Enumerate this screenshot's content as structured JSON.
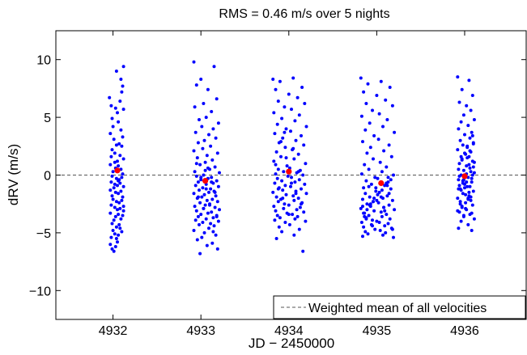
{
  "chart_data": {
    "type": "scatter",
    "title": "RMS = 0.46 m/s over 5 nights",
    "xlabel": "JD − 2450000",
    "ylabel": "dRV (m/s)",
    "xlim": [
      4931.35,
      4936.7
    ],
    "ylim": [
      -12.5,
      12.5
    ],
    "xticks": [
      4932,
      4933,
      4934,
      4935,
      4936
    ],
    "yticks": [
      -10,
      -5,
      0,
      5,
      10
    ],
    "ytick_labels": [
      "−10",
      "−5",
      "0",
      "5",
      "10"
    ],
    "grid": false,
    "legend": {
      "position": "bottom-right",
      "entries": [
        "Weighted mean of all velocities"
      ]
    },
    "mean_line": {
      "y": 0,
      "style": "dashed",
      "color": "#555555"
    },
    "nightly_means": {
      "color": "#ff0000",
      "x": [
        4932.05,
        4933.05,
        4934.0,
        4935.05,
        4936.0
      ],
      "y": [
        0.4,
        -0.5,
        0.3,
        -0.7,
        -0.1
      ]
    },
    "points_color": "#0000ff",
    "nights": [
      {
        "x": [
          4932.12,
          4931.96,
          4932.04,
          4932.09,
          4932.11,
          4931.98,
          4932.03,
          4932.1,
          4932.05,
          4931.99,
          4932.08,
          4932.0,
          4932.12,
          4931.97,
          4932.06,
          4932.09,
          4932.01,
          4932.04,
          4931.99,
          4932.11,
          4932.07,
          4931.98,
          4932.02,
          4932.1,
          4932.05,
          4932.08,
          4931.97,
          4932.03,
          4932.12,
          4932.0,
          4932.06,
          4931.99,
          4932.09,
          4932.04,
          4932.11,
          4931.98,
          4932.02,
          4932.07,
          4932.1,
          4932.01,
          4932.05,
          4931.97,
          4932.08,
          4932.03,
          4932.12,
          4931.99,
          4932.06,
          4932.0,
          4932.09,
          4932.04,
          4931.98,
          4932.11,
          4932.02,
          4932.07,
          4932.05,
          4932.1,
          4931.97,
          4932.03,
          4932.08,
          4932.01,
          4932.06,
          4931.99,
          4932.12,
          4932.04,
          4932.0,
          4932.09,
          4932.02,
          4931.98,
          4932.07,
          4932.11,
          4932.05,
          4932.03,
          4931.97,
          4932.1,
          4932.06,
          4932.01,
          4932.08,
          4932.04,
          4931.99,
          4932.12,
          4932.02,
          4932.06
        ],
        "y": [
          9.4,
          6.7,
          9.0,
          8.3,
          7.7,
          6.0,
          5.8,
          7.2,
          5.4,
          4.9,
          6.4,
          4.2,
          5.7,
          3.6,
          4.6,
          3.9,
          3.1,
          2.6,
          2.2,
          3.3,
          2.7,
          1.6,
          1.9,
          2.5,
          1.2,
          1.7,
          0.9,
          0.6,
          1.4,
          0.3,
          0.8,
          -0.1,
          0.5,
          -0.3,
          0.1,
          -0.6,
          -0.8,
          -0.4,
          -0.2,
          -1.1,
          -0.9,
          -1.3,
          -0.7,
          -1.5,
          -1.0,
          -1.8,
          -1.6,
          -2.1,
          -1.4,
          -2.3,
          -2.6,
          -1.9,
          -2.8,
          -2.4,
          -3.0,
          -2.2,
          -3.3,
          -3.6,
          -2.9,
          -3.9,
          -3.4,
          -4.2,
          -3.1,
          -4.5,
          -4.8,
          -3.8,
          -5.1,
          -5.4,
          -4.3,
          -3.5,
          -5.8,
          -6.2,
          -6.0,
          -4.9,
          -5.2,
          -6.6,
          -4.6,
          -5.5,
          -6.4,
          -2.7,
          1.1,
          -0.5
        ]
      },
      {
        "x": [
          4932.92,
          4933.15,
          4933.0,
          4932.95,
          4933.08,
          4933.18,
          4933.03,
          4932.93,
          4933.12,
          4933.06,
          4932.98,
          4933.2,
          4933.01,
          4933.14,
          4932.94,
          4933.09,
          4933.17,
          4933.04,
          4932.97,
          4933.11,
          4933.02,
          4932.92,
          4933.19,
          4933.07,
          4932.96,
          4933.13,
          4933.05,
          4932.99,
          4933.16,
          4933.1,
          4932.93,
          4933.21,
          4933.03,
          4932.95,
          4933.12,
          4933.08,
          4933.0,
          4933.18,
          4932.97,
          4933.14,
          4933.06,
          4932.94,
          4933.2,
          4933.02,
          4933.11,
          4932.98,
          4933.15,
          4933.09,
          4932.92,
          4933.04,
          4933.17,
          4933.01,
          4932.96,
          4933.13,
          4933.07,
          4933.19,
          4932.99,
          4933.1,
          4933.05,
          4932.93,
          4933.16,
          4933.03,
          4933.21,
          4932.95,
          4933.12,
          4933.08,
          4933.0,
          4933.18,
          4932.97,
          4933.14,
          4933.06,
          4932.94,
          4933.2,
          4933.02,
          4933.11,
          4932.98,
          4933.15,
          4933.09,
          4932.92,
          4933.04,
          4933.17,
          4933.01,
          4932.96,
          4933.13,
          4933.07,
          4933.19,
          4932.99,
          4933.1,
          4933.05,
          4933.16,
          4932.95,
          4933.12,
          4933.03,
          4933.08,
          4932.97,
          4933.18,
          4933.0,
          4933.14,
          4933.06
        ],
        "y": [
          9.8,
          9.4,
          8.3,
          7.8,
          7.4,
          6.6,
          6.2,
          5.9,
          5.5,
          5.0,
          4.8,
          4.5,
          4.2,
          4.0,
          3.7,
          3.5,
          3.2,
          3.0,
          2.8,
          2.5,
          2.3,
          2.1,
          1.9,
          1.7,
          1.5,
          1.3,
          1.1,
          0.9,
          0.7,
          0.5,
          0.3,
          0.2,
          0.0,
          -0.1,
          -0.2,
          -0.3,
          -0.4,
          -0.5,
          -0.6,
          -0.7,
          -0.8,
          -0.9,
          -1.0,
          -1.1,
          -1.2,
          -1.3,
          -1.4,
          -1.5,
          -1.6,
          -1.7,
          -1.8,
          -1.9,
          -2.0,
          -2.1,
          -2.2,
          -2.3,
          -2.4,
          -2.5,
          -2.6,
          -2.7,
          -2.8,
          -2.9,
          -3.0,
          -3.1,
          -3.2,
          -3.3,
          -3.4,
          -3.5,
          -3.6,
          -3.7,
          -3.8,
          -3.9,
          -4.0,
          -4.1,
          -4.2,
          -4.3,
          -4.4,
          -4.6,
          -4.8,
          -5.0,
          -5.2,
          -5.4,
          -5.6,
          -5.9,
          -6.1,
          -6.4,
          -6.8,
          -2.6,
          0.4,
          -1.5,
          1.0,
          -0.6,
          -2.9,
          0.6,
          -1.9,
          -3.6,
          -0.2,
          -4.9,
          -1.2
        ],
        "cluster": null
      },
      {
        "x": [
          4933.82,
          4934.05,
          4933.9,
          4934.15,
          4933.85,
          4934.0,
          4934.1,
          4933.88,
          4934.18,
          4933.95,
          4934.03,
          4933.83,
          4934.12,
          4933.92,
          4934.07,
          4933.87,
          4934.2,
          4933.97,
          4934.02,
          4933.84,
          4934.14,
          4933.93,
          4934.08,
          4933.89,
          4934.17,
          4933.96,
          4934.04,
          4933.86,
          4934.11,
          4933.91,
          4934.06,
          4933.83,
          4934.19,
          4933.98,
          4934.01,
          4933.88,
          4934.13,
          4933.94,
          4934.09,
          4933.85,
          4934.16,
          4933.99,
          4934.03,
          4933.87,
          4934.12,
          4933.92,
          4934.07,
          4933.84,
          4934.18,
          4933.96,
          4934.02,
          4933.89,
          4934.14,
          4933.93,
          4934.08,
          4933.82,
          4934.2,
          4933.97,
          4934.05,
          4933.86,
          4934.11,
          4933.91,
          4934.06,
          4933.88,
          4934.15,
          4933.95,
          4934.0,
          4933.83,
          4934.13,
          4933.94,
          4934.09,
          4933.85,
          4934.17,
          4933.98,
          4934.04,
          4933.87,
          4934.1,
          4933.9,
          4934.07,
          4933.84,
          4934.19,
          4933.96,
          4934.01,
          4933.89,
          4934.12,
          4933.92,
          4934.06,
          4933.86,
          4934.16,
          4933.97,
          4934.03,
          4933.91,
          4934.08,
          4933.85,
          4934.14,
          4933.95,
          4934.0,
          4934.11,
          4933.88,
          4934.05,
          4933.93
        ],
        "y": [
          8.3,
          8.4,
          8.1,
          7.6,
          7.4,
          7.0,
          6.7,
          6.4,
          6.2,
          5.9,
          5.7,
          5.4,
          5.2,
          4.9,
          4.7,
          4.4,
          4.2,
          4.0,
          3.8,
          3.6,
          3.4,
          3.2,
          3.0,
          2.8,
          2.6,
          2.4,
          2.2,
          2.0,
          1.8,
          1.6,
          1.4,
          1.2,
          1.0,
          0.8,
          0.6,
          0.5,
          0.4,
          0.3,
          0.2,
          0.1,
          0.0,
          -0.1,
          -0.2,
          -0.3,
          -0.4,
          -0.5,
          -0.6,
          -0.7,
          -0.8,
          -0.9,
          -1.0,
          -1.1,
          -1.2,
          -1.3,
          -1.4,
          -1.5,
          -1.6,
          -1.7,
          -1.8,
          -1.9,
          -2.0,
          -2.1,
          -2.2,
          -2.3,
          -2.4,
          -2.5,
          -2.6,
          -2.7,
          -2.8,
          -2.9,
          -3.0,
          -3.1,
          -3.2,
          -3.3,
          -3.4,
          -3.5,
          -3.6,
          -3.7,
          -3.8,
          -3.9,
          -4.0,
          -4.1,
          -4.3,
          -4.5,
          -4.7,
          -4.9,
          -5.2,
          -5.5,
          -6.6,
          1.5,
          -0.7,
          2.9,
          -1.6,
          0.9,
          -2.5,
          3.7,
          -3.4,
          0.3,
          -1.2,
          2.3,
          -2.0
        ]
      },
      {
        "x": [
          4934.82,
          4935.05,
          4934.9,
          4935.15,
          4934.85,
          4935.0,
          4935.1,
          4934.88,
          4935.18,
          4934.95,
          4935.03,
          4934.83,
          4935.12,
          4934.92,
          4935.07,
          4934.87,
          4935.2,
          4934.97,
          4935.02,
          4934.84,
          4935.14,
          4934.93,
          4935.08,
          4934.89,
          4935.17,
          4934.96,
          4935.04,
          4934.86,
          4935.11,
          4934.91,
          4935.06,
          4934.83,
          4935.19,
          4934.98,
          4935.01,
          4934.88,
          4935.13,
          4934.94,
          4935.09,
          4934.85,
          4935.16,
          4934.99,
          4935.03,
          4934.87,
          4935.12,
          4934.92,
          4935.07,
          4934.84,
          4935.18,
          4934.96,
          4935.02,
          4934.89,
          4935.14,
          4934.93,
          4935.08,
          4934.82,
          4935.2,
          4934.97,
          4935.05,
          4934.86,
          4935.11,
          4934.91,
          4935.06,
          4934.88,
          4935.15,
          4934.95,
          4935.0,
          4934.83,
          4935.13,
          4934.94,
          4935.09,
          4934.85,
          4935.17,
          4934.98,
          4935.04,
          4934.87,
          4935.1,
          4934.9,
          4935.07,
          4934.84,
          4935.19,
          4934.96,
          4935.01,
          4934.89,
          4935.12,
          4934.92,
          4935.06,
          4934.86,
          4935.16,
          4934.97,
          4935.03,
          4934.91,
          4935.08,
          4934.85,
          4935.14,
          4934.95,
          4935.0,
          4935.11,
          4934.88,
          4935.05,
          4934.93,
          4935.18,
          4934.99,
          4935.09,
          4934.84,
          4935.13
        ],
        "y": [
          8.4,
          8.1,
          7.9,
          7.6,
          7.2,
          6.9,
          6.5,
          6.2,
          6.0,
          5.6,
          5.3,
          5.1,
          4.8,
          4.5,
          4.2,
          3.9,
          3.7,
          3.4,
          3.1,
          2.9,
          2.6,
          2.4,
          2.1,
          1.9,
          1.6,
          1.4,
          1.1,
          0.9,
          0.7,
          0.5,
          0.3,
          0.1,
          0.0,
          -0.2,
          -0.3,
          -0.5,
          -0.6,
          -0.8,
          -0.9,
          -1.1,
          -1.2,
          -1.4,
          -1.5,
          -1.6,
          -1.8,
          -1.9,
          -2.0,
          -2.1,
          -2.2,
          -2.3,
          -2.4,
          -2.5,
          -2.6,
          -2.7,
          -2.8,
          -2.9,
          -3.0,
          -3.1,
          -3.2,
          -3.3,
          -3.4,
          -3.5,
          -3.6,
          -3.7,
          -3.8,
          -3.9,
          -4.0,
          -4.1,
          -4.2,
          -4.3,
          -4.4,
          -4.5,
          -4.6,
          -4.7,
          -4.8,
          -4.9,
          -5.0,
          -5.1,
          -5.2,
          -5.3,
          -5.4,
          -2.3,
          -1.7,
          -3.0,
          -0.9,
          -2.6,
          -1.3,
          -3.6,
          -0.4,
          -2.0,
          -4.1,
          -1.0,
          -2.8,
          -3.3,
          -1.6,
          -4.4,
          -2.2,
          -0.7,
          -3.8,
          -1.9,
          -2.5,
          -4.7,
          -1.1,
          -3.1,
          -2.7,
          -0.2
        ]
      },
      {
        "x": [
          4935.92,
          4936.05,
          4935.97,
          4936.09,
          4935.94,
          4936.02,
          4936.07,
          4935.99,
          4936.11,
          4935.96,
          4936.04,
          4935.93,
          4936.08,
          4936.0,
          4936.06,
          4935.95,
          4936.1,
          4935.98,
          4936.03,
          4935.92,
          4936.07,
          4936.01,
          4936.05,
          4935.97,
          4936.09,
          4935.94,
          4936.02,
          4936.06,
          4935.99,
          4936.11,
          4935.96,
          4936.04,
          4935.93,
          4936.08,
          4936.0,
          4936.03,
          4935.95,
          4936.1,
          4935.98,
          4936.05,
          4935.92,
          4936.07,
          4936.01,
          4936.09,
          4935.97,
          4936.02,
          4935.94,
          4936.06,
          4935.99,
          4936.11,
          4935.96,
          4936.04,
          4935.93,
          4936.08,
          4936.0,
          4936.05,
          4935.95,
          4936.1,
          4935.98,
          4936.03,
          4935.92,
          4936.07,
          4936.01,
          4936.09,
          4935.97,
          4936.02,
          4935.94,
          4936.06,
          4935.99,
          4936.11,
          4935.96,
          4936.04,
          4935.93,
          4936.08,
          4936.0,
          4936.05,
          4935.95,
          4936.1,
          4935.98,
          4936.03,
          4936.07,
          4935.97,
          4936.01,
          4936.09,
          4935.94,
          4936.06,
          4935.99,
          4936.04,
          4935.96,
          4936.08,
          4936.02,
          4935.93
        ],
        "y": [
          8.5,
          8.2,
          7.4,
          6.9,
          6.3,
          6.0,
          5.6,
          5.2,
          4.8,
          4.6,
          4.3,
          4.0,
          3.7,
          3.5,
          3.2,
          3.0,
          2.8,
          2.6,
          2.4,
          2.2,
          2.0,
          1.8,
          1.6,
          1.4,
          1.2,
          1.0,
          0.8,
          0.6,
          0.4,
          0.2,
          0.0,
          -0.2,
          -0.4,
          -0.6,
          -0.8,
          -1.0,
          -1.2,
          -1.4,
          -1.6,
          -1.8,
          -2.0,
          -2.2,
          -2.4,
          -2.6,
          -2.8,
          -3.0,
          -3.2,
          -3.4,
          -3.6,
          -3.8,
          -4.0,
          -4.3,
          -4.6,
          -4.8,
          -1.1,
          0.9,
          -2.3,
          2.7,
          -0.5,
          1.5,
          -3.1,
          0.3,
          -1.7,
          3.4,
          -2.7,
          0.1,
          -0.9,
          2.1,
          -3.5,
          1.1,
          -1.3,
          -2.1,
          0.5,
          -0.3,
          1.9,
          -1.5,
          -2.5,
          0.7,
          -0.7,
          2.5,
          -1.9,
          1.3,
          -2.9,
          0.0,
          -0.1,
          -1.0,
          -0.4,
          -2.0,
          1.6,
          -3.3,
          -0.6,
          -1.2
        ]
      }
    ]
  }
}
